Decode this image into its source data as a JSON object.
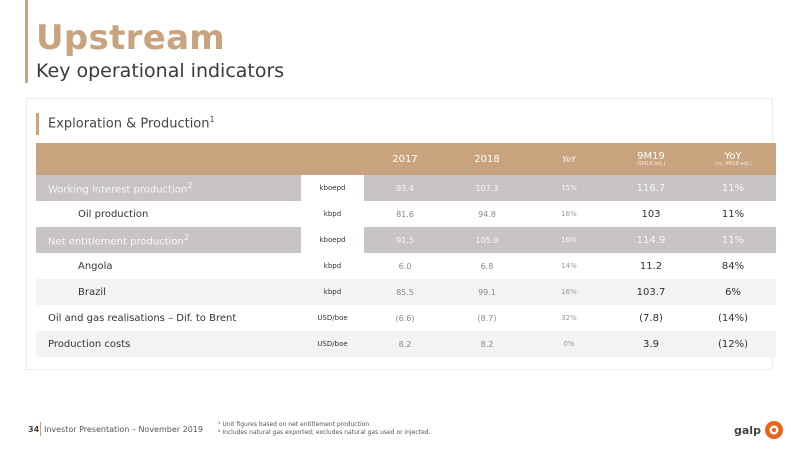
{
  "header": {
    "title": "Upstream",
    "subtitle": "Key operational indicators"
  },
  "section": {
    "title": "Exploration & Production",
    "title_sup": "1"
  },
  "table": {
    "columns": {
      "y2017": "2017",
      "y2018": "2018",
      "yoy": "YoY",
      "m9": "9M19",
      "m9_sub": "(9M18 adj.)",
      "yoy2": "YoY",
      "yoy2_sub": "(vs. 9M18 adj.)"
    },
    "rows": [
      {
        "label": "Working interest production",
        "sup": "2",
        "unit": "kboepd",
        "y2017": "93.4",
        "y2018": "107.3",
        "yoy": "15%",
        "m9": "116.7",
        "yoy2": "11%"
      },
      {
        "label": "Oil production",
        "sup": "",
        "unit": "kbpd",
        "y2017": "81.6",
        "y2018": "94.8",
        "yoy": "16%",
        "m9": "103",
        "yoy2": "11%"
      },
      {
        "label": "Net entitlement production",
        "sup": "2",
        "unit": "kboepd",
        "y2017": "91.5",
        "y2018": "105.9",
        "yoy": "16%",
        "m9": "114.9",
        "yoy2": "11%"
      },
      {
        "label": "Angola",
        "sup": "",
        "unit": "kbpd",
        "y2017": "6.0",
        "y2018": "6.8",
        "yoy": "14%",
        "m9": "11.2",
        "yoy2": "84%"
      },
      {
        "label": "Brazil",
        "sup": "",
        "unit": "kbpd",
        "y2017": "85.5",
        "y2018": "99.1",
        "yoy": "16%",
        "m9": "103.7",
        "yoy2": "6%"
      },
      {
        "label": "Oil and gas realisations – Dif. to Brent",
        "sup": "",
        "unit": "USD/boe",
        "y2017": "(6.6)",
        "y2018": "(8.7)",
        "yoy": "32%",
        "m9": "(7.8)",
        "yoy2": "(14%)"
      },
      {
        "label": "Production costs",
        "sup": "",
        "unit": "USD/boe",
        "y2017": "8.2",
        "y2018": "8.2",
        "yoy": "0%",
        "m9": "3.9",
        "yoy2": "(12%)"
      }
    ]
  },
  "footer": {
    "page_number": "34",
    "text": "Investor Presentation – November 2019",
    "note1": "¹ Unit figures based on net entitlement production",
    "note2": "² Includes natural gas exported; excludes natural gas used or injected.",
    "logo": "galp"
  },
  "colors": {
    "accent": "#c9a27e",
    "shade": "#c8c4c4",
    "logo_orange": "#e8641b"
  }
}
